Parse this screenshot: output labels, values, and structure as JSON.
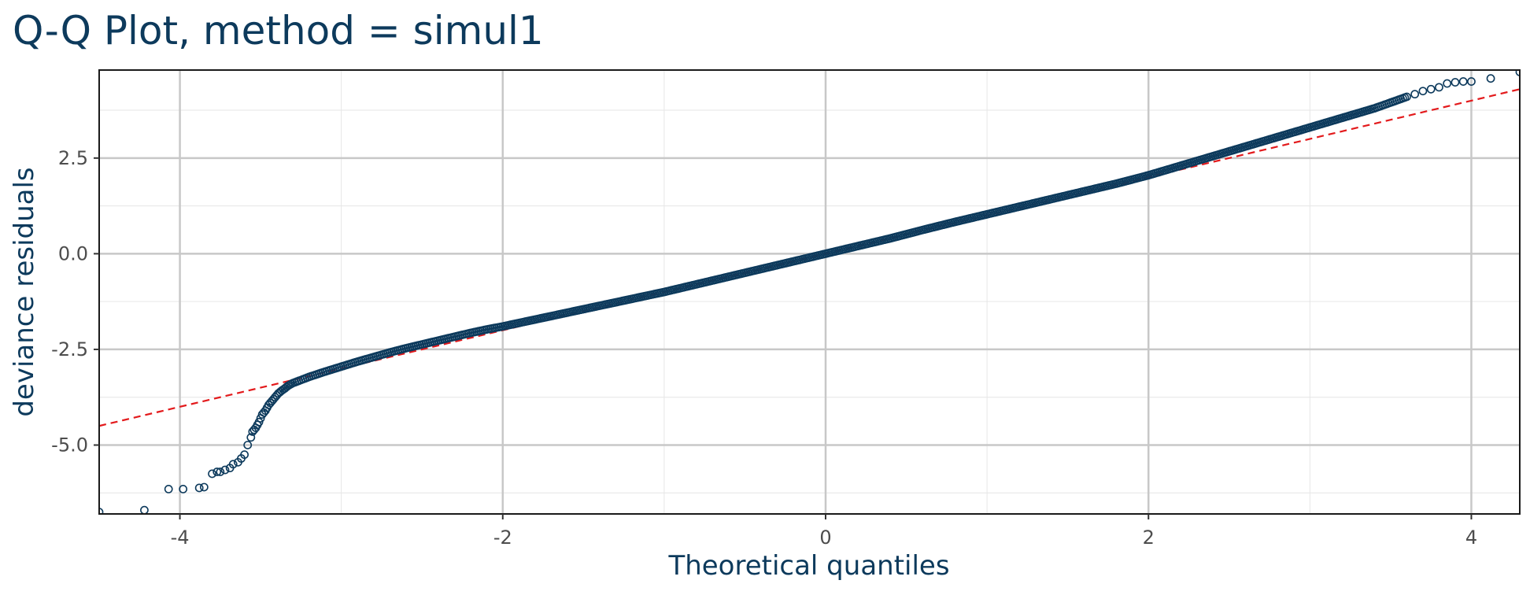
{
  "chart_data": {
    "type": "scatter",
    "title": "Q-Q Plot, method = simul1",
    "xlabel": "Theoretical quantiles",
    "ylabel": "deviance residuals",
    "xlim": [
      -4.5,
      4.3
    ],
    "ylim": [
      -6.8,
      4.8
    ],
    "xticks": [
      -4,
      -2,
      0,
      2,
      4
    ],
    "xtick_labels": [
      "-4",
      "-2",
      "0",
      "2",
      "4"
    ],
    "yticks": [
      -5.0,
      -2.5,
      0.0,
      2.5
    ],
    "ytick_labels": [
      "-5.0",
      "-2.5",
      "0.0",
      "2.5"
    ],
    "grid": true,
    "legend": "none",
    "colors": {
      "points": "#0d3a5c",
      "reference_line": "#e31a1c",
      "text": "#0d3a5c",
      "ticks": "#4d4d4d"
    },
    "reference_line": {
      "style": "dashed",
      "slope": 1.0,
      "intercept": 0.0
    },
    "series": [
      {
        "kind": "points",
        "x": [
          -4.5,
          -4.22,
          -4.07,
          -3.98,
          -3.88,
          -3.85,
          -3.8,
          -3.77,
          -3.75,
          -3.72,
          -3.69,
          -3.67,
          -3.64,
          -3.62,
          -3.6,
          -3.58,
          -3.56,
          -3.55,
          -3.53,
          -3.51,
          -3.49,
          -3.47,
          -3.45,
          -3.43,
          -3.41,
          -3.39,
          -3.37,
          -3.35,
          -3.33,
          -3.3,
          -3.25,
          -3.2,
          -3.1,
          -3.0,
          -2.9,
          -2.8,
          -2.7,
          -2.6,
          -2.5,
          -2.4,
          -2.3,
          -2.2,
          -2.1,
          -2.0,
          -1.8,
          -1.6,
          -1.4,
          -1.2,
          -1.0,
          -0.8,
          -0.6,
          -0.4,
          -0.2,
          0.0,
          0.2,
          0.4,
          0.6,
          0.8,
          1.0,
          1.2,
          1.4,
          1.6,
          1.8,
          2.0,
          2.2,
          2.4,
          2.6,
          2.8,
          3.0,
          3.2,
          3.4,
          3.5,
          3.6,
          3.65,
          3.7,
          3.75,
          3.8,
          3.85,
          3.9,
          3.95,
          4.0,
          4.12,
          4.3
        ],
        "y": [
          -6.75,
          -6.7,
          -6.15,
          -6.15,
          -6.12,
          -6.1,
          -5.75,
          -5.7,
          -5.7,
          -5.65,
          -5.6,
          -5.5,
          -5.45,
          -5.35,
          -5.25,
          -5.0,
          -4.8,
          -4.65,
          -4.55,
          -4.4,
          -4.2,
          -4.1,
          -3.95,
          -3.85,
          -3.75,
          -3.65,
          -3.58,
          -3.52,
          -3.45,
          -3.38,
          -3.3,
          -3.22,
          -3.08,
          -2.95,
          -2.82,
          -2.7,
          -2.58,
          -2.47,
          -2.37,
          -2.27,
          -2.17,
          -2.07,
          -1.98,
          -1.9,
          -1.72,
          -1.54,
          -1.36,
          -1.18,
          -1.0,
          -0.8,
          -0.6,
          -0.4,
          -0.2,
          0.0,
          0.2,
          0.4,
          0.62,
          0.83,
          1.03,
          1.23,
          1.43,
          1.63,
          1.83,
          2.05,
          2.3,
          2.55,
          2.8,
          3.05,
          3.3,
          3.55,
          3.8,
          3.95,
          4.1,
          4.17,
          4.25,
          4.3,
          4.35,
          4.45,
          4.48,
          4.5,
          4.5,
          4.58,
          4.75
        ]
      }
    ]
  }
}
